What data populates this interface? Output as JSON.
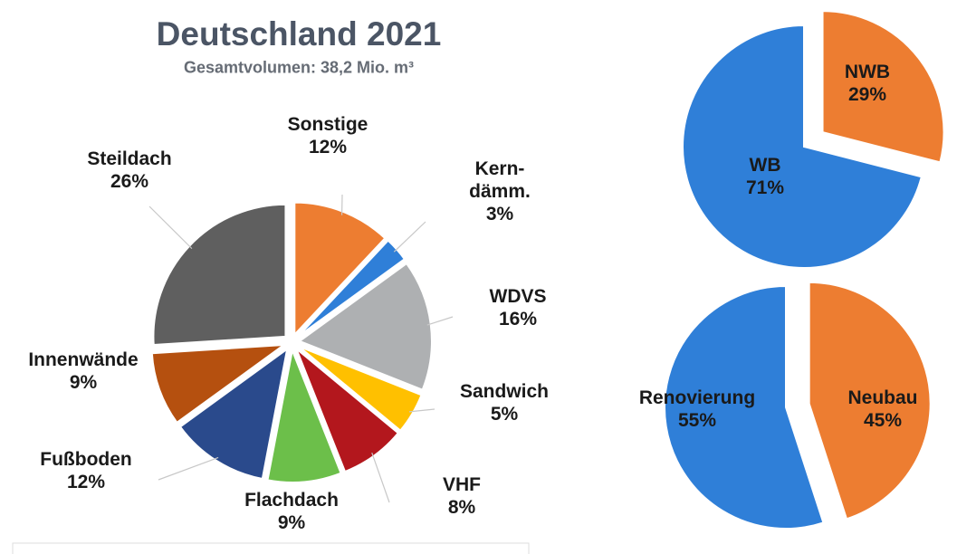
{
  "chart_data": [
    {
      "type": "pie",
      "title": "Deutschland 2021",
      "subtitle": "Gesamtvolumen: 38,2 Mio. m³",
      "categories": [
        "Sonstige",
        "Kern-dämm.",
        "WDVS",
        "Sandwich",
        "VHF",
        "Flachdach",
        "Fußboden",
        "Innenwände",
        "Steildach"
      ],
      "values": [
        12,
        3,
        16,
        5,
        8,
        9,
        12,
        9,
        26
      ],
      "value_labels": [
        "12%",
        "3%",
        "16%",
        "5%",
        "8%",
        "9%",
        "12%",
        "9%",
        "26%"
      ],
      "colors": [
        "#ed7d31",
        "#2f7fd8",
        "#aeb0b2",
        "#ffc000",
        "#b3171d",
        "#6cbf4a",
        "#2a4a8c",
        "#b5500f",
        "#5f5f5f"
      ]
    },
    {
      "type": "pie",
      "categories": [
        "NWB",
        "WB"
      ],
      "values": [
        29,
        71
      ],
      "value_labels": [
        "29%",
        "71%"
      ],
      "colors": [
        "#ed7d31",
        "#2f7fd8"
      ]
    },
    {
      "type": "pie",
      "categories": [
        "Neubau",
        "Renovierung"
      ],
      "values": [
        45,
        55
      ],
      "value_labels": [
        "45%",
        "55%"
      ],
      "colors": [
        "#ed7d31",
        "#2f7fd8"
      ]
    }
  ]
}
